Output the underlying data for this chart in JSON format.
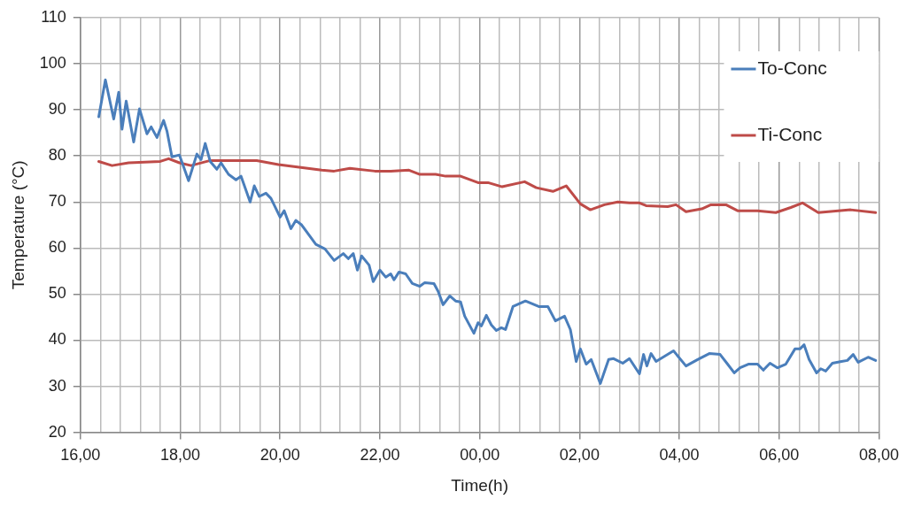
{
  "chart_data": {
    "type": "line",
    "xlabel": "Time(h)",
    "ylabel": "Temperature (°C)",
    "xlim": [
      "--01-01T16:00",
      "--01-02T08:00"
    ],
    "xticks": [
      {
        "value": "--01-01T16:00",
        "label": "16,00"
      },
      {
        "value": "--01-01T16:24",
        "label": null
      },
      {
        "value": "--01-01T16:48",
        "label": null
      },
      {
        "value": "--01-01T17:12",
        "label": null
      },
      {
        "value": "--01-01T17:36",
        "label": null
      },
      {
        "value": "--01-01T18:00",
        "label": "18,00"
      },
      {
        "value": "--01-01T18:24",
        "label": null
      },
      {
        "value": "--01-01T18:48",
        "label": null
      },
      {
        "value": "--01-01T19:12",
        "label": null
      },
      {
        "value": "--01-01T19:36",
        "label": null
      },
      {
        "value": "--01-01T20:00",
        "label": "20,00"
      },
      {
        "value": "--01-01T20:24",
        "label": null
      },
      {
        "value": "--01-01T20:48",
        "label": null
      },
      {
        "value": "--01-01T21:12",
        "label": null
      },
      {
        "value": "--01-01T21:36",
        "label": null
      },
      {
        "value": "--01-01T22:00",
        "label": "22,00"
      },
      {
        "value": "--01-01T22:24",
        "label": null
      },
      {
        "value": "--01-01T22:48",
        "label": null
      },
      {
        "value": "--01-01T23:12",
        "label": null
      },
      {
        "value": "--01-01T23:36",
        "label": null
      },
      {
        "value": "--01-02T00:00",
        "label": "00,00"
      },
      {
        "value": "--01-02T00:24",
        "label": null
      },
      {
        "value": "--01-02T00:48",
        "label": null
      },
      {
        "value": "--01-02T01:12",
        "label": null
      },
      {
        "value": "--01-02T01:36",
        "label": null
      },
      {
        "value": "--01-02T02:00",
        "label": "02,00"
      },
      {
        "value": "--01-02T02:24",
        "label": null
      },
      {
        "value": "--01-02T02:48",
        "label": null
      },
      {
        "value": "--01-02T03:12",
        "label": null
      },
      {
        "value": "--01-02T03:36",
        "label": null
      },
      {
        "value": "--01-02T04:00",
        "label": "04,00"
      },
      {
        "value": "--01-02T04:24",
        "label": null
      },
      {
        "value": "--01-02T04:48",
        "label": null
      },
      {
        "value": "--01-02T05:12",
        "label": null
      },
      {
        "value": "--01-02T05:36",
        "label": null
      },
      {
        "value": "--01-02T06:00",
        "label": "06,00"
      },
      {
        "value": "--01-02T06:24",
        "label": null
      },
      {
        "value": "--01-02T06:48",
        "label": null
      },
      {
        "value": "--01-02T07:12",
        "label": null
      },
      {
        "value": "--01-02T07:36",
        "label": null
      },
      {
        "value": "--01-02T08:00",
        "label": "08,00"
      }
    ],
    "ylim": [
      20,
      110
    ],
    "yticks": [
      20,
      30,
      40,
      50,
      60,
      70,
      80,
      90,
      100,
      110
    ],
    "grid": true,
    "legend": "top right",
    "marker": "none",
    "line_style": "solid",
    "series": [
      {
        "name": "To-Conc",
        "color": "#4a7ebb",
        "x": [
          "--01-01T16:22",
          "--01-01T16:30",
          "--01-01T16:40",
          "--01-01T16:46",
          "--01-01T16:50",
          "--01-01T16:55",
          "--01-01T17:04",
          "--01-01T17:11",
          "--01-01T17:20",
          "--01-01T17:25",
          "--01-01T17:32",
          "--01-01T17:40",
          "--01-01T17:44",
          "--01-01T17:50",
          "--01-01T17:59",
          "--01-01T18:10",
          "--01-01T18:20",
          "--01-01T18:25",
          "--01-01T18:30",
          "--01-01T18:36",
          "--01-01T18:44",
          "--01-01T18:49",
          "--01-01T18:58",
          "--01-01T19:07",
          "--01-01T19:13",
          "--01-01T19:24",
          "--01-01T19:29",
          "--01-01T19:35",
          "--01-01T19:43",
          "--01-01T19:49",
          "--01-01T20:00",
          "--01-01T20:05",
          "--01-01T20:13",
          "--01-01T20:19",
          "--01-01T20:26",
          "--01-01T20:43",
          "--01-01T20:54",
          "--01-01T21:05",
          "--01-01T21:16",
          "--01-01T21:22",
          "--01-01T21:28",
          "--01-01T21:33",
          "--01-01T21:38",
          "--01-01T21:47",
          "--01-01T21:52",
          "--01-01T22:00",
          "--01-01T22:07",
          "--01-01T22:13",
          "--01-01T22:17",
          "--01-01T22:23",
          "--01-01T22:31",
          "--01-01T22:39",
          "--01-01T22:48",
          "--01-01T22:54",
          "--01-01T23:05",
          "--01-01T23:10",
          "--01-01T23:16",
          "--01-01T23:24",
          "--01-01T23:31",
          "--01-01T23:37",
          "--01-01T23:42",
          "--01-01T23:53",
          "--01-01T23:58",
          "--01-02T00:02",
          "--01-02T00:08",
          "--01-02T00:14",
          "--01-02T00:20",
          "--01-02T00:26",
          "--01-02T00:31",
          "--01-02T00:40",
          "--01-02T00:55",
          "--01-02T01:11",
          "--01-02T01:22",
          "--01-02T01:31",
          "--01-02T01:42",
          "--01-02T01:49",
          "--01-02T01:56",
          "--01-02T02:01",
          "--01-02T02:08",
          "--01-02T02:14",
          "--01-02T02:25",
          "--01-02T02:35",
          "--01-02T02:41",
          "--01-02T02:52",
          "--01-02T03:00",
          "--01-02T03:12",
          "--01-02T03:17",
          "--01-02T03:21",
          "--01-02T03:26",
          "--01-02T03:32",
          "--01-02T03:53",
          "--01-02T04:08",
          "--01-02T04:22",
          "--01-02T04:36",
          "--01-02T04:49",
          "--01-02T04:58",
          "--01-02T05:06",
          "--01-02T05:13",
          "--01-02T05:23",
          "--01-02T05:34",
          "--01-02T05:41",
          "--01-02T05:49",
          "--01-02T05:58",
          "--01-02T06:08",
          "--01-02T06:19",
          "--01-02T06:25",
          "--01-02T06:30",
          "--01-02T06:36",
          "--01-02T06:45",
          "--01-02T06:50",
          "--01-02T06:56",
          "--01-02T07:04",
          "--01-02T07:15",
          "--01-02T07:22",
          "--01-02T07:29",
          "--01-02T07:35",
          "--01-02T07:47",
          "--01-02T07:56"
        ],
        "values": [
          88.5,
          96.5,
          88,
          93.8,
          85.8,
          91.9,
          83,
          90.2,
          84.8,
          86.3,
          84,
          87.7,
          85.4,
          79.8,
          80.2,
          74.6,
          80.4,
          79.2,
          82.7,
          78.8,
          77.1,
          78.5,
          76,
          74.8,
          75.6,
          70,
          73.5,
          71.2,
          71.9,
          70.8,
          66.7,
          68.1,
          64.2,
          66,
          65,
          60.8,
          59.8,
          57.3,
          58.8,
          57.7,
          58.8,
          55.2,
          58.3,
          56.3,
          52.7,
          55.2,
          53.7,
          54.4,
          53.1,
          54.8,
          54.4,
          52.3,
          51.7,
          52.5,
          52.3,
          50.6,
          47.7,
          49.6,
          48.5,
          48.3,
          45.2,
          41.5,
          43.8,
          43.1,
          45.4,
          43.3,
          42.1,
          42.7,
          42.3,
          47.3,
          48.5,
          47.3,
          47.3,
          44.2,
          45.2,
          42.3,
          35.4,
          38.1,
          34.8,
          35.8,
          30.6,
          35.8,
          36,
          35,
          36,
          32.7,
          36.9,
          34.4,
          37.1,
          35.4,
          37.7,
          34.4,
          35.8,
          37.1,
          36.9,
          34.8,
          32.9,
          34,
          34.8,
          34.8,
          33.5,
          35,
          34,
          34.8,
          38.1,
          38.1,
          39,
          35.8,
          32.9,
          33.8,
          33.3,
          35,
          35.4,
          35.6,
          36.9,
          35.2,
          36.3,
          35.6
        ]
      },
      {
        "name": "Ti-Conc",
        "color": "#be4b48",
        "x": [
          "--01-01T16:22",
          "--01-01T16:38",
          "--01-01T16:58",
          "--01-01T17:36",
          "--01-01T17:46",
          "--01-01T17:59",
          "--01-01T18:13",
          "--01-01T18:36",
          "--01-01T19:10",
          "--01-01T19:32",
          "--01-01T19:58",
          "--01-01T20:25",
          "--01-01T20:50",
          "--01-01T21:05",
          "--01-01T21:24",
          "--01-01T21:54",
          "--01-01T22:13",
          "--01-01T22:35",
          "--01-01T22:48",
          "--01-01T23:07",
          "--01-01T23:19",
          "--01-01T23:37",
          "--01-01T23:58",
          "--01-02T00:10",
          "--01-02T00:27",
          "--01-02T00:54",
          "--01-02T01:08",
          "--01-02T01:28",
          "--01-02T01:44",
          "--01-02T02:01",
          "--01-02T02:13",
          "--01-02T02:30",
          "--01-02T02:46",
          "--01-02T03:00",
          "--01-02T03:12",
          "--01-02T03:20",
          "--01-02T03:46",
          "--01-02T03:56",
          "--01-02T04:08",
          "--01-02T04:27",
          "--01-02T04:38",
          "--01-02T04:56",
          "--01-02T05:10",
          "--01-02T05:34",
          "--01-02T05:56",
          "--01-02T06:14",
          "--01-02T06:28",
          "--01-02T06:47",
          "--01-02T07:11",
          "--01-02T07:26",
          "--01-02T07:56"
        ],
        "values": [
          78.8,
          77.9,
          78.5,
          78.8,
          79.4,
          78.5,
          77.9,
          79,
          79,
          79,
          78.1,
          77.5,
          76.9,
          76.7,
          77.3,
          76.7,
          76.7,
          76.9,
          76,
          76,
          75.6,
          75.6,
          74.2,
          74.2,
          73.3,
          74.4,
          73.1,
          72.3,
          73.5,
          69.6,
          68.3,
          69.4,
          70,
          69.8,
          69.8,
          69.2,
          69,
          69.4,
          67.9,
          68.5,
          69.4,
          69.4,
          68.1,
          68.1,
          67.7,
          68.8,
          69.8,
          67.7,
          68.1,
          68.3,
          67.7
        ]
      }
    ]
  }
}
